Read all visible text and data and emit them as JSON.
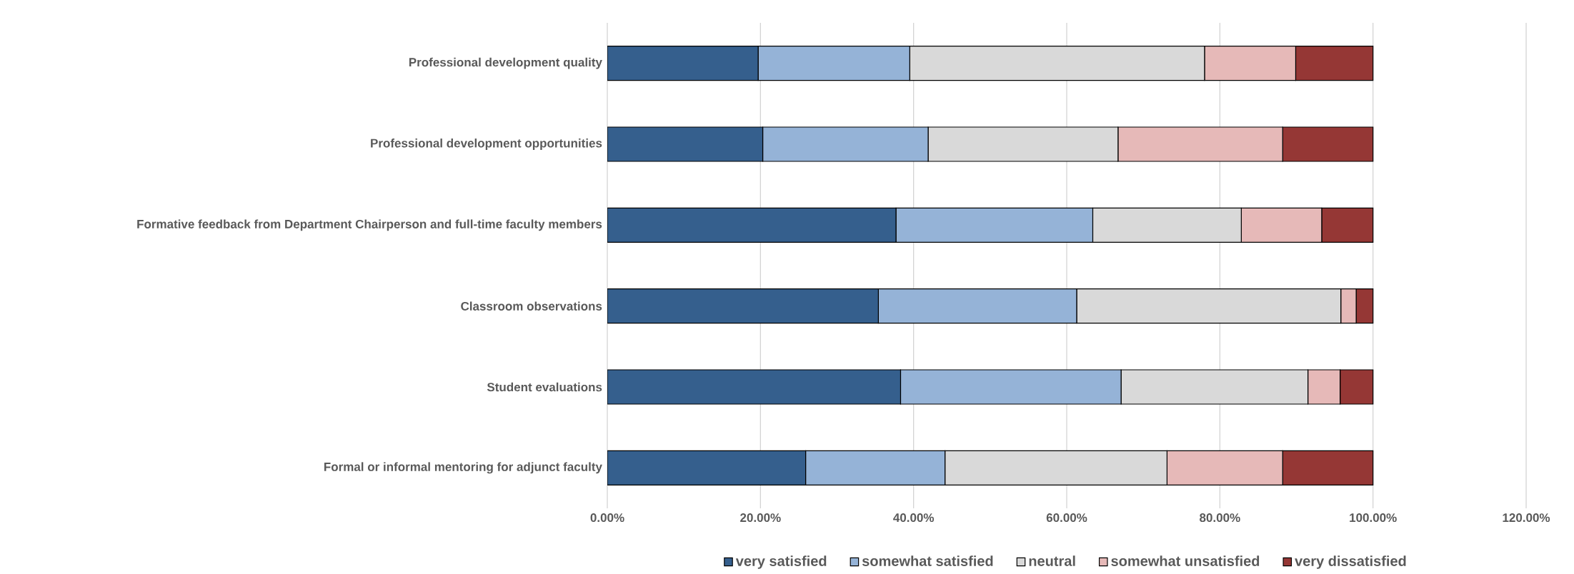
{
  "chart_data": {
    "type": "bar",
    "orientation": "horizontal",
    "stacked": true,
    "categories": [
      "Professional development quality",
      "Professional development opportunities",
      "Formative feedback from Department Chairperson and full-time faculty members",
      "Classroom observations",
      "Student evaluations",
      "Formal or informal mentoring for adjunct faculty"
    ],
    "series": [
      {
        "name": "very satisfied",
        "color": "#355f8d",
        "values": [
          19.7,
          20.3,
          37.7,
          35.4,
          38.3,
          25.9
        ]
      },
      {
        "name": "somewhat satisfied",
        "color": "#95b3d7",
        "values": [
          19.8,
          21.6,
          25.7,
          25.9,
          28.8,
          18.2
        ]
      },
      {
        "name": "neutral",
        "color": "#d9d9d9",
        "values": [
          38.5,
          24.8,
          19.4,
          34.5,
          24.4,
          29.0
        ]
      },
      {
        "name": "somewhat unsatisfied",
        "color": "#e6b9b8",
        "values": [
          11.9,
          21.5,
          10.5,
          2.0,
          4.2,
          15.1
        ]
      },
      {
        "name": "very dissatisfied",
        "color": "#953735",
        "values": [
          10.1,
          11.8,
          6.7,
          2.2,
          4.3,
          11.8
        ]
      }
    ],
    "xlim": [
      0,
      120
    ],
    "xticks": [
      {
        "value": 0,
        "label": "0.00%"
      },
      {
        "value": 20,
        "label": "20.00%"
      },
      {
        "value": 40,
        "label": "40.00%"
      },
      {
        "value": 60,
        "label": "60.00%"
      },
      {
        "value": 80,
        "label": "80.00%"
      },
      {
        "value": 100,
        "label": "100.00%"
      },
      {
        "value": 120,
        "label": "120.00%"
      }
    ],
    "grid": "x",
    "legend": "bottom"
  }
}
